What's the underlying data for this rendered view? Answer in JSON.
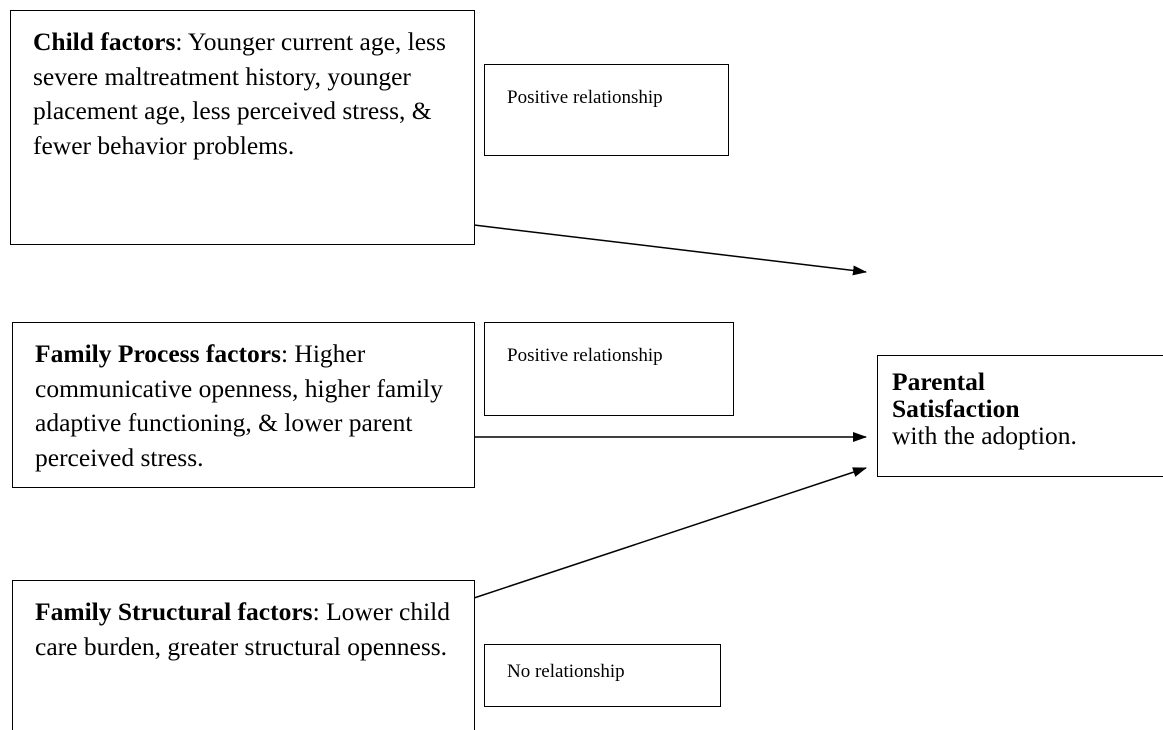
{
  "nodes": [
    {
      "bold": "Child factors",
      "text": ": Younger current age, less severe maltreatment history, younger placement age, less perceived stress, & fewer behavior problems."
    },
    {
      "bold": "Family Process factors",
      "text": ": Higher communicative openness, higher family adaptive functioning, & lower parent perceived stress."
    },
    {
      "bold": "Family Structural factors",
      "text": ": Lower child care burden, greater structural openness."
    },
    {
      "bold": "Parental Satisfaction",
      "text": "with the adoption."
    }
  ],
  "edges": [
    {
      "label": "Positive relationship"
    },
    {
      "label": "Positive relationship"
    },
    {
      "label": "No relationship"
    }
  ]
}
